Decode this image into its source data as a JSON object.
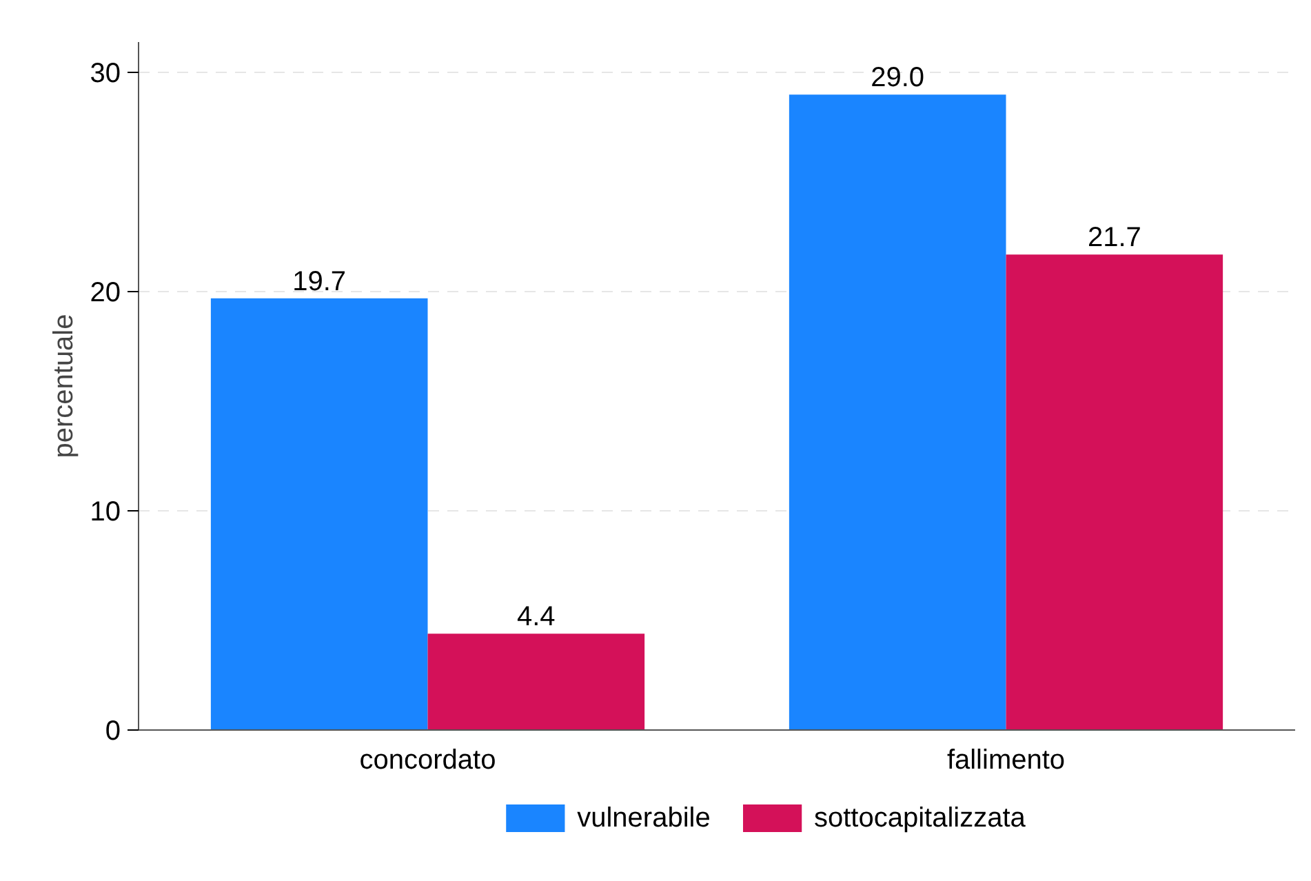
{
  "chart_data": {
    "type": "bar",
    "ylabel": "percentuale",
    "categories": [
      "concordato",
      "fallimento"
    ],
    "series": [
      {
        "name": "vulnerabile",
        "color": "#1a85ff",
        "values": [
          19.7,
          29.0
        ]
      },
      {
        "name": "sottocapitalizzata",
        "color": "#d41159",
        "values": [
          4.4,
          21.7
        ]
      }
    ],
    "ylim": [
      0,
      31.4
    ],
    "yticks": [
      0,
      10,
      20,
      30
    ],
    "grid": "y",
    "legend": "bottom",
    "value_labels": [
      [
        "19.7",
        "29.0"
      ],
      [
        "4.4",
        "21.7"
      ]
    ]
  }
}
